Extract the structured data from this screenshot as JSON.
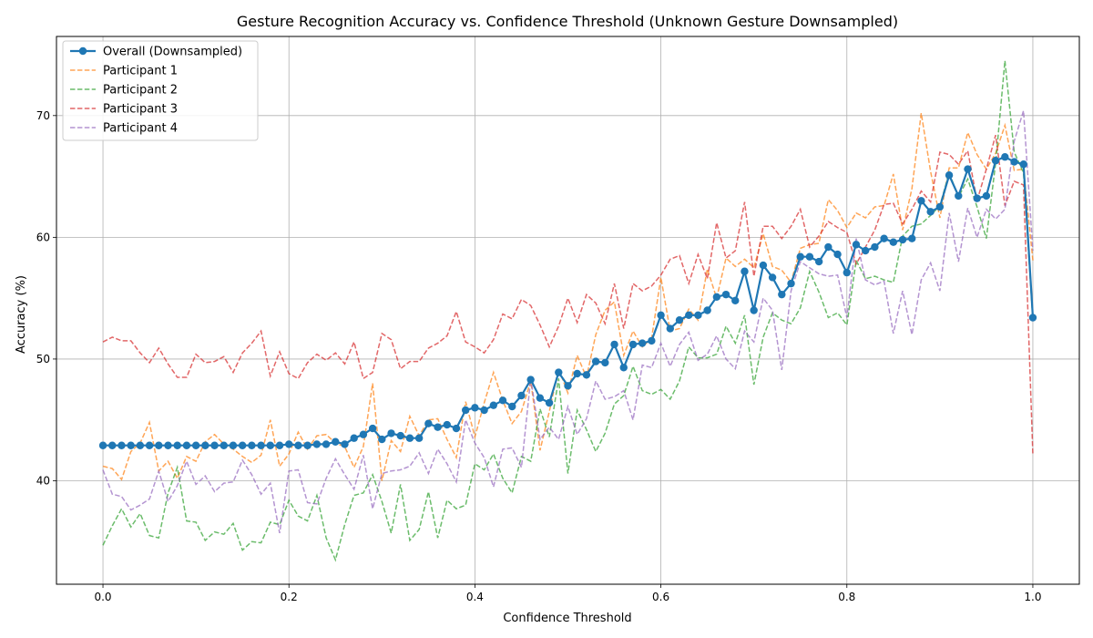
{
  "chart_data": {
    "type": "line",
    "title": "Gesture Recognition Accuracy vs. Confidence Threshold (Unknown Gesture Downsampled)",
    "xlabel": "Confidence Threshold",
    "ylabel": "Accuracy (%)",
    "xlim": [
      -0.05,
      1.05
    ],
    "ylim": [
      31.5,
      76.5
    ],
    "xticks": [
      0.0,
      0.2,
      0.4,
      0.6,
      0.8,
      1.0
    ],
    "xtick_labels": [
      "0.0",
      "0.2",
      "0.4",
      "0.6",
      "0.8",
      "1.0"
    ],
    "yticks": [
      40,
      50,
      60,
      70
    ],
    "ytick_labels": [
      "40",
      "50",
      "60",
      "70"
    ],
    "grid": true,
    "legend_position": "top-left",
    "x": [
      0.0,
      0.01,
      0.02,
      0.03,
      0.04,
      0.05,
      0.06,
      0.07,
      0.08,
      0.09,
      0.1,
      0.11,
      0.12,
      0.13,
      0.14,
      0.15,
      0.16,
      0.17,
      0.18,
      0.19,
      0.2,
      0.21,
      0.22,
      0.23,
      0.24,
      0.25,
      0.26,
      0.27,
      0.28,
      0.29,
      0.3,
      0.31,
      0.32,
      0.33,
      0.34,
      0.35,
      0.36,
      0.37,
      0.38,
      0.39,
      0.4,
      0.41,
      0.42,
      0.43,
      0.44,
      0.45,
      0.46,
      0.47,
      0.48,
      0.49,
      0.5,
      0.51,
      0.52,
      0.53,
      0.54,
      0.55,
      0.56,
      0.57,
      0.58,
      0.59,
      0.6,
      0.61,
      0.62,
      0.63,
      0.64,
      0.65,
      0.66,
      0.67,
      0.68,
      0.69,
      0.7,
      0.71,
      0.72,
      0.73,
      0.74,
      0.75,
      0.76,
      0.77,
      0.78,
      0.79,
      0.8,
      0.81,
      0.82,
      0.83,
      0.84,
      0.85,
      0.86,
      0.87,
      0.88,
      0.89,
      0.9,
      0.91,
      0.92,
      0.93,
      0.94,
      0.95,
      0.96,
      0.97,
      0.98,
      0.99,
      1.0
    ],
    "series": [
      {
        "name": "Overall (Downsampled)",
        "color": "#1f77b4",
        "style": "solid-marker",
        "values": [
          42.9,
          42.9,
          42.9,
          42.9,
          42.9,
          42.9,
          42.9,
          42.9,
          42.9,
          42.9,
          42.9,
          42.9,
          42.9,
          42.9,
          42.9,
          42.9,
          42.9,
          42.9,
          42.9,
          42.9,
          43.0,
          42.9,
          42.9,
          43.0,
          43.0,
          43.2,
          43.0,
          43.5,
          43.8,
          44.3,
          43.4,
          43.9,
          43.7,
          43.5,
          43.5,
          44.7,
          44.4,
          44.6,
          44.3,
          45.8,
          46.0,
          45.8,
          46.2,
          46.6,
          46.1,
          47.0,
          48.3,
          46.8,
          46.4,
          48.9,
          47.8,
          48.8,
          48.7,
          49.8,
          49.7,
          51.2,
          49.3,
          51.2,
          51.3,
          51.5,
          53.6,
          52.5,
          53.2,
          53.6,
          53.6,
          54.0,
          55.1,
          55.3,
          54.8,
          57.2,
          54.0,
          57.7,
          56.7,
          55.3,
          56.2,
          58.4,
          58.4,
          58.0,
          59.2,
          58.6,
          57.1,
          59.4,
          58.9,
          59.2,
          59.9,
          59.6,
          59.8,
          59.9,
          63.0,
          62.1,
          62.5,
          65.1,
          63.4,
          65.6,
          63.2,
          63.4,
          66.3,
          66.6,
          66.2,
          66.0,
          53.4
        ]
      },
      {
        "name": "Participant 1",
        "color": "#ff7f0e",
        "style": "dashed",
        "values": [
          41.2,
          41.0,
          40.1,
          42.4,
          43.1,
          44.8,
          40.8,
          41.6,
          40.2,
          42.0,
          41.6,
          43.2,
          43.8,
          43.0,
          42.6,
          42.0,
          41.5,
          42.1,
          45.0,
          41.2,
          42.2,
          44.0,
          42.6,
          43.7,
          43.8,
          43.1,
          42.8,
          41.1,
          42.8,
          48.0,
          40.0,
          43.3,
          42.4,
          45.3,
          43.7,
          45.0,
          45.1,
          43.4,
          41.9,
          46.5,
          43.6,
          46.4,
          48.9,
          46.6,
          44.7,
          45.7,
          48.2,
          42.5,
          45.7,
          49.2,
          47.2,
          50.3,
          48.5,
          52.0,
          54.0,
          54.7,
          50.3,
          52.3,
          51.0,
          51.7,
          56.7,
          52.3,
          52.5,
          54.1,
          53.2,
          57.4,
          55.0,
          58.3,
          57.6,
          58.2,
          57.5,
          60.3,
          57.6,
          57.3,
          56.3,
          59.1,
          59.4,
          59.5,
          63.1,
          62.2,
          60.8,
          62.0,
          61.6,
          62.5,
          62.6,
          65.2,
          60.6,
          64.0,
          70.2,
          65.4,
          61.6,
          65.7,
          65.7,
          68.6,
          66.8,
          65.6,
          66.9,
          69.2,
          65.5,
          65.6,
          58.1
        ]
      },
      {
        "name": "Participant 2",
        "color": "#2ca02c",
        "style": "dashed",
        "values": [
          34.7,
          36.3,
          37.7,
          36.2,
          37.3,
          35.5,
          35.3,
          39.0,
          41.1,
          36.7,
          36.6,
          35.1,
          35.8,
          35.6,
          36.5,
          34.3,
          35.0,
          34.9,
          36.6,
          36.4,
          38.4,
          37.1,
          36.7,
          38.8,
          35.3,
          33.5,
          36.4,
          38.8,
          39.0,
          40.5,
          38.3,
          35.7,
          39.7,
          35.1,
          36.0,
          39.1,
          35.3,
          38.4,
          37.7,
          38.0,
          41.4,
          40.9,
          42.2,
          40.2,
          39.0,
          42.0,
          41.6,
          45.9,
          43.6,
          48.4,
          40.6,
          45.8,
          44.2,
          42.4,
          43.9,
          46.3,
          47.0,
          49.4,
          47.4,
          47.1,
          47.5,
          46.7,
          48.2,
          51.0,
          50.1,
          50.1,
          50.4,
          52.7,
          51.3,
          53.6,
          47.9,
          51.8,
          53.8,
          53.2,
          52.9,
          54.2,
          57.2,
          55.5,
          53.4,
          53.8,
          52.8,
          58.1,
          56.6,
          56.8,
          56.5,
          56.3,
          60.1,
          60.9,
          61.1,
          61.8,
          62.6,
          65.3,
          63.3,
          64.8,
          62.5,
          59.9,
          66.1,
          74.5,
          67.0,
          65.3,
          53.2
        ]
      },
      {
        "name": "Participant 3",
        "color": "#d62728",
        "style": "dashed",
        "values": [
          51.4,
          51.8,
          51.5,
          51.5,
          50.5,
          49.7,
          50.9,
          49.6,
          48.5,
          48.5,
          50.4,
          49.7,
          49.8,
          50.2,
          48.9,
          50.5,
          51.3,
          52.3,
          48.6,
          50.6,
          48.8,
          48.4,
          49.7,
          50.4,
          49.9,
          50.5,
          49.6,
          51.4,
          48.4,
          48.9,
          52.1,
          51.6,
          49.2,
          49.8,
          49.8,
          50.9,
          51.3,
          51.9,
          53.9,
          51.4,
          51.0,
          50.5,
          51.6,
          53.7,
          53.3,
          54.9,
          54.4,
          52.8,
          51.0,
          52.7,
          55.0,
          53.0,
          55.3,
          54.6,
          52.9,
          56.2,
          52.5,
          56.2,
          55.6,
          56.0,
          56.9,
          58.2,
          58.5,
          56.2,
          58.6,
          56.6,
          61.2,
          58.3,
          58.9,
          62.9,
          56.8,
          60.9,
          60.9,
          59.9,
          60.9,
          62.3,
          59.2,
          60.1,
          61.3,
          60.8,
          60.4,
          57.8,
          59.2,
          60.6,
          62.7,
          62.8,
          61.1,
          62.3,
          63.8,
          62.9,
          67.0,
          66.8,
          66.0,
          67.1,
          63.0,
          65.6,
          68.4,
          62.6,
          64.6,
          64.3,
          42.1
        ]
      },
      {
        "name": "Participant 4",
        "color": "#9467bd",
        "style": "dashed",
        "values": [
          40.9,
          38.9,
          38.7,
          37.6,
          38.0,
          38.5,
          40.8,
          38.3,
          39.6,
          41.6,
          39.7,
          40.4,
          39.1,
          39.8,
          39.9,
          41.7,
          40.5,
          38.9,
          39.8,
          35.7,
          40.8,
          40.9,
          38.2,
          38.1,
          40.2,
          41.8,
          40.5,
          39.3,
          42.1,
          37.7,
          40.6,
          40.8,
          40.9,
          41.2,
          42.3,
          40.6,
          42.6,
          41.4,
          39.9,
          45.0,
          43.1,
          41.9,
          39.5,
          42.6,
          42.7,
          41.1,
          48.4,
          43.4,
          44.4,
          43.4,
          46.1,
          43.8,
          45.1,
          48.2,
          46.7,
          46.9,
          47.4,
          45.0,
          49.5,
          49.3,
          51.3,
          49.4,
          51.2,
          52.2,
          49.9,
          50.4,
          51.9,
          50.0,
          49.2,
          52.3,
          51.4,
          55.0,
          54.0,
          49.1,
          55.6,
          58.0,
          57.5,
          57.0,
          56.8,
          56.9,
          53.4,
          59.9,
          56.5,
          56.1,
          56.4,
          52.1,
          55.6,
          52.0,
          56.5,
          57.9,
          55.6,
          62.0,
          58.0,
          62.4,
          60.0,
          62.3,
          61.5,
          62.3,
          67.9,
          70.4,
          58.9
        ]
      }
    ]
  }
}
